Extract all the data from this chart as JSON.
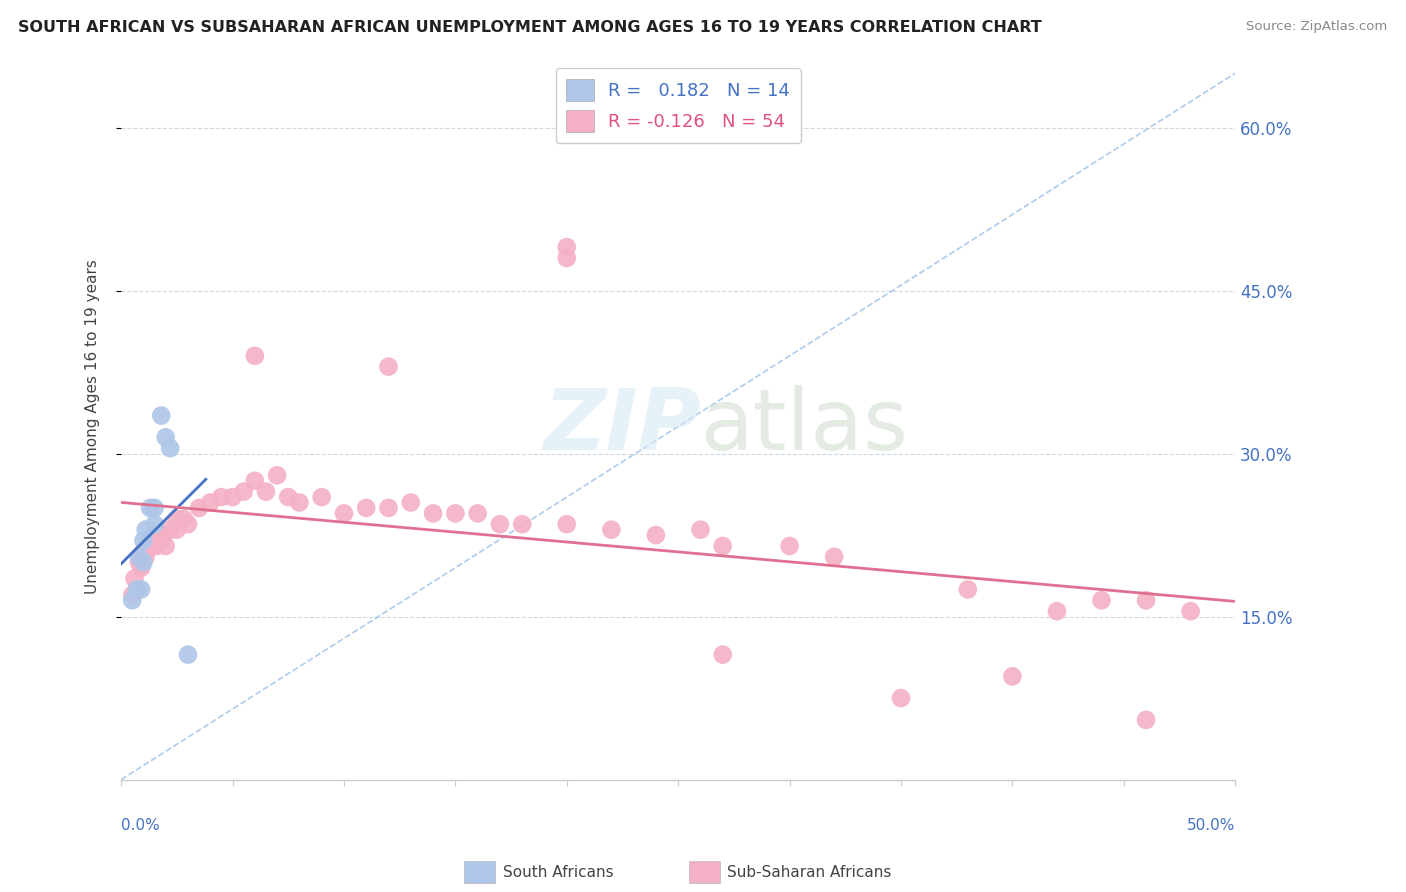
{
  "title": "SOUTH AFRICAN VS SUBSAHARAN AFRICAN UNEMPLOYMENT AMONG AGES 16 TO 19 YEARS CORRELATION CHART",
  "source": "Source: ZipAtlas.com",
  "ylabel": "Unemployment Among Ages 16 to 19 years",
  "ytick_values": [
    0.15,
    0.3,
    0.45,
    0.6
  ],
  "xlim": [
    0.0,
    0.5
  ],
  "ylim": [
    0.0,
    0.65
  ],
  "south_african_color": "#aec6e8",
  "subsaharan_color": "#f4b0c5",
  "trendline_sa_color": "#4472c4",
  "trendline_ss_color": "#e07090",
  "diagonal_color": "#99bfe8",
  "background_color": "#ffffff",
  "sa_x": [
    0.005,
    0.007,
    0.008,
    0.009,
    0.01,
    0.01,
    0.011,
    0.013,
    0.015,
    0.015,
    0.018,
    0.02,
    0.022,
    0.03
  ],
  "sa_y": [
    0.165,
    0.175,
    0.205,
    0.175,
    0.2,
    0.22,
    0.23,
    0.25,
    0.235,
    0.25,
    0.335,
    0.315,
    0.305,
    0.115
  ],
  "ss_x": [
    0.005,
    0.006,
    0.007,
    0.008,
    0.009,
    0.01,
    0.011,
    0.012,
    0.013,
    0.014,
    0.015,
    0.016,
    0.018,
    0.019,
    0.02,
    0.022,
    0.025,
    0.025,
    0.028,
    0.03,
    0.035,
    0.04,
    0.045,
    0.05,
    0.055,
    0.06,
    0.065,
    0.07,
    0.075,
    0.08,
    0.09,
    0.1,
    0.11,
    0.12,
    0.13,
    0.14,
    0.15,
    0.16,
    0.17,
    0.18,
    0.2,
    0.22,
    0.24,
    0.26,
    0.27,
    0.3,
    0.32,
    0.38,
    0.42,
    0.44,
    0.46,
    0.48,
    0.12,
    0.2
  ],
  "ss_y": [
    0.17,
    0.185,
    0.175,
    0.2,
    0.195,
    0.21,
    0.205,
    0.215,
    0.215,
    0.215,
    0.22,
    0.215,
    0.22,
    0.225,
    0.215,
    0.23,
    0.23,
    0.24,
    0.24,
    0.235,
    0.25,
    0.255,
    0.26,
    0.26,
    0.265,
    0.275,
    0.265,
    0.28,
    0.26,
    0.255,
    0.26,
    0.245,
    0.25,
    0.25,
    0.255,
    0.245,
    0.245,
    0.245,
    0.235,
    0.235,
    0.235,
    0.23,
    0.225,
    0.23,
    0.215,
    0.215,
    0.205,
    0.175,
    0.155,
    0.165,
    0.165,
    0.155,
    0.38,
    0.48
  ],
  "ss_outlier_x": [
    0.06,
    0.2,
    0.27,
    0.35,
    0.4,
    0.46
  ],
  "ss_outlier_y": [
    0.39,
    0.49,
    0.115,
    0.075,
    0.095,
    0.055
  ]
}
